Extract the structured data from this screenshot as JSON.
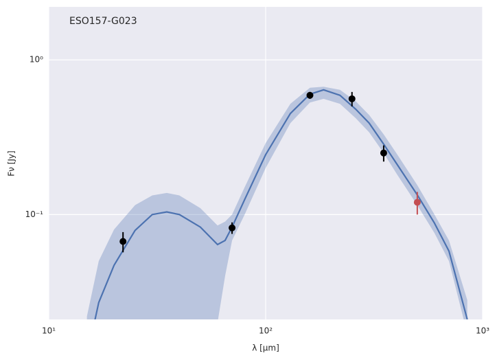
{
  "chart_data": {
    "type": "line",
    "title": "ESO157-G023",
    "xlabel": "λ [μm]",
    "ylabel": "Fν [Jy]",
    "xscale": "log",
    "yscale": "log",
    "xlim": [
      10,
      1000
    ],
    "ylim": [
      0.021,
      2.2
    ],
    "xticks": [
      {
        "value": 10,
        "label": "10¹"
      },
      {
        "value": 100,
        "label": "10²"
      },
      {
        "value": 1000,
        "label": "10³"
      }
    ],
    "yticks": [
      {
        "value": 0.1,
        "label": "10⁻¹"
      },
      {
        "value": 1,
        "label": "10⁰"
      }
    ],
    "grid": true,
    "background": "#eaeaf2",
    "model": {
      "color": "#4c72b0",
      "x": [
        15,
        17,
        20,
        25,
        30,
        35,
        40,
        50,
        60,
        65,
        70,
        80,
        100,
        130,
        160,
        185,
        220,
        260,
        300,
        350,
        400,
        500,
        600,
        700,
        850
      ],
      "values": [
        0.012,
        0.027,
        0.047,
        0.079,
        0.1,
        0.104,
        0.1,
        0.083,
        0.064,
        0.068,
        0.083,
        0.125,
        0.244,
        0.45,
        0.6,
        0.64,
        0.59,
        0.48,
        0.39,
        0.285,
        0.215,
        0.134,
        0.088,
        0.058,
        0.021
      ],
      "lower": [
        0.01,
        0.01,
        0.01,
        0.01,
        0.01,
        0.01,
        0.01,
        0.01,
        0.02,
        0.04,
        0.068,
        0.1,
        0.2,
        0.39,
        0.53,
        0.56,
        0.52,
        0.42,
        0.34,
        0.25,
        0.185,
        0.115,
        0.076,
        0.05,
        0.017
      ],
      "upper": [
        0.022,
        0.05,
        0.08,
        0.115,
        0.133,
        0.138,
        0.133,
        0.11,
        0.085,
        0.09,
        0.1,
        0.15,
        0.29,
        0.52,
        0.66,
        0.67,
        0.64,
        0.54,
        0.44,
        0.33,
        0.25,
        0.155,
        0.1,
        0.068,
        0.028
      ]
    },
    "series": [
      {
        "color": "#000000",
        "x": [
          22,
          70,
          160,
          250,
          350
        ],
        "values": [
          0.067,
          0.082,
          0.59,
          0.56,
          0.25
        ],
        "errors": [
          0.01,
          0.007,
          0.03,
          0.06,
          0.03
        ]
      },
      {
        "color": "#c44e52",
        "x": [
          500
        ],
        "values": [
          0.12
        ],
        "errors": [
          0.02
        ]
      }
    ]
  }
}
